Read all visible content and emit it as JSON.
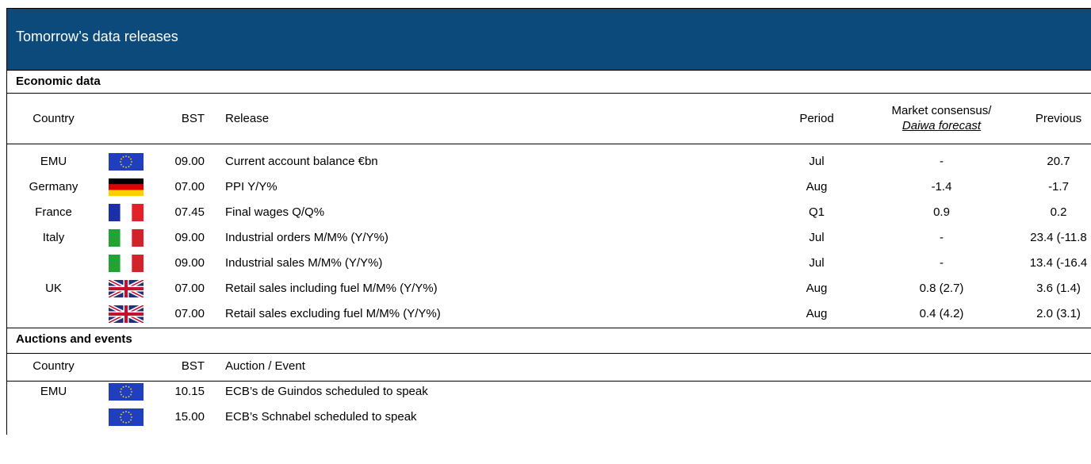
{
  "header": {
    "title": "Tomorrow’s data releases"
  },
  "economic": {
    "title": "Economic data",
    "columns": {
      "country": "Country",
      "bst": "BST",
      "release": "Release",
      "period": "Period",
      "consensus": "Market consensus/",
      "forecast": "Daiwa forecast",
      "previous": "Previous"
    },
    "rows": [
      [
        "EMU",
        "09.00",
        "Current account balance €bn",
        "Jul",
        "-",
        "20.7"
      ],
      [
        "Germany",
        "07.00",
        "PPI Y/Y%",
        "Aug",
        "-1.4",
        "-1.7"
      ],
      [
        "France",
        "07.45",
        "Final wages Q/Q%",
        "Q1",
        "0.9",
        "0.2"
      ],
      [
        "Italy",
        "09.00",
        "Industrial orders M/M% (Y/Y%)",
        "Jul",
        "-",
        "23.4 (-11.8"
      ],
      [
        null,
        "09.00",
        "Industrial sales M/M% (Y/Y%)",
        "Jul",
        "-",
        "13.4 (-16.4"
      ],
      [
        "UK",
        "07.00",
        "Retail sales including fuel M/M% (Y/Y%)",
        "Aug",
        "0.8 (2.7)",
        "3.6 (1.4)"
      ],
      [
        null,
        "07.00",
        "Retail sales excluding fuel M/M% (Y/Y%)",
        "Aug",
        "0.4 (4.2)",
        "2.0 (3.1)"
      ]
    ]
  },
  "events": {
    "title": "Auctions and events",
    "columns": {
      "country": "Country",
      "bst": "BST",
      "event": "Auction / Event"
    },
    "rows": [
      [
        "EMU",
        "10.15",
        "ECB’s de Guindos scheduled to speak"
      ],
      [
        null,
        "15.00",
        "ECB’s Schnabel scheduled to speak"
      ]
    ]
  }
}
